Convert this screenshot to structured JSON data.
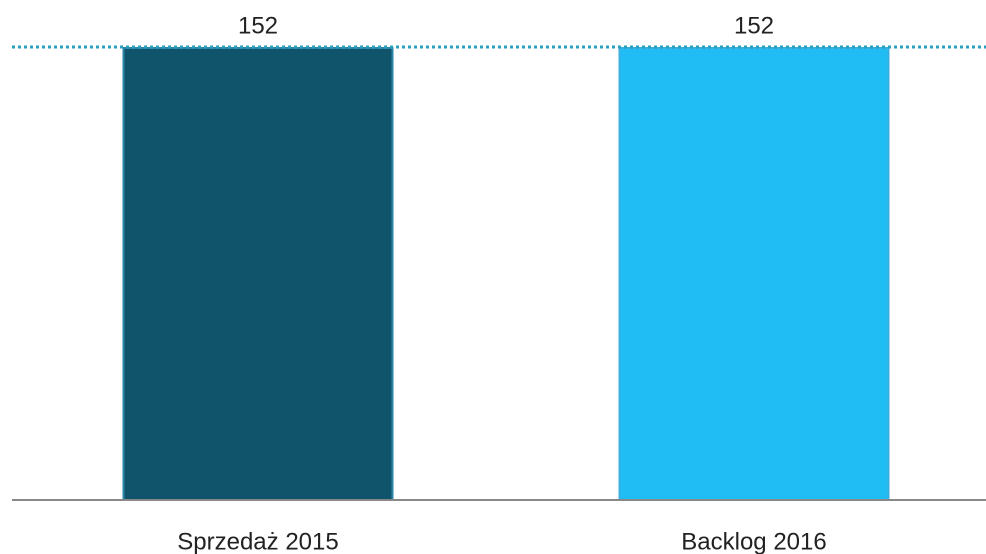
{
  "chart_data": {
    "type": "bar",
    "categories": [
      "Sprzedaż 2015",
      "Backlog 2016"
    ],
    "values": [
      152,
      152
    ],
    "colors": [
      "#10546b",
      "#1fbdf3"
    ],
    "ylim": [
      0,
      152
    ]
  }
}
